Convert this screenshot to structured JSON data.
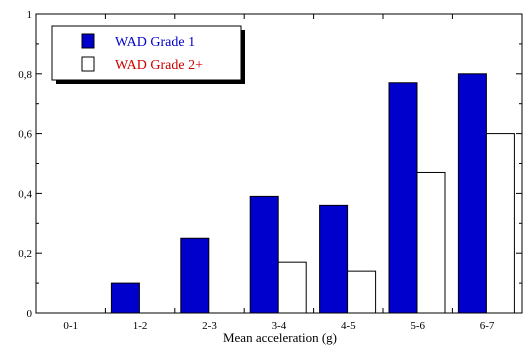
{
  "chart_data": {
    "type": "bar",
    "title": "",
    "xlabel": "Mean acceleration (g)",
    "ylabel": "",
    "categories": [
      "0-1",
      "1-2",
      "2-3",
      "3-4",
      "4-5",
      "5-6",
      "6-7"
    ],
    "series": [
      {
        "name": "WAD Grade 1",
        "values": [
          0,
          0.1,
          0.25,
          0.39,
          0.36,
          0.77,
          0.8
        ],
        "color": "#0000CC",
        "legend_text_color": "#0000CC"
      },
      {
        "name": "WAD Grade 2+",
        "values": [
          0,
          0,
          0,
          0.17,
          0.14,
          0.47,
          0.6
        ],
        "color": "#FFFFFF",
        "legend_text_color": "#CC0000"
      }
    ],
    "y_ticks": [
      {
        "value": 0,
        "label": "0"
      },
      {
        "value": 0.2,
        "label": "0,2"
      },
      {
        "value": 0.4,
        "label": "0,4"
      },
      {
        "value": 0.6,
        "label": "0,6"
      },
      {
        "value": 0.8,
        "label": "0,8"
      },
      {
        "value": 1,
        "label": "1"
      }
    ],
    "ylim": [
      0,
      1
    ],
    "grid": false,
    "legend_position": "top-left"
  }
}
